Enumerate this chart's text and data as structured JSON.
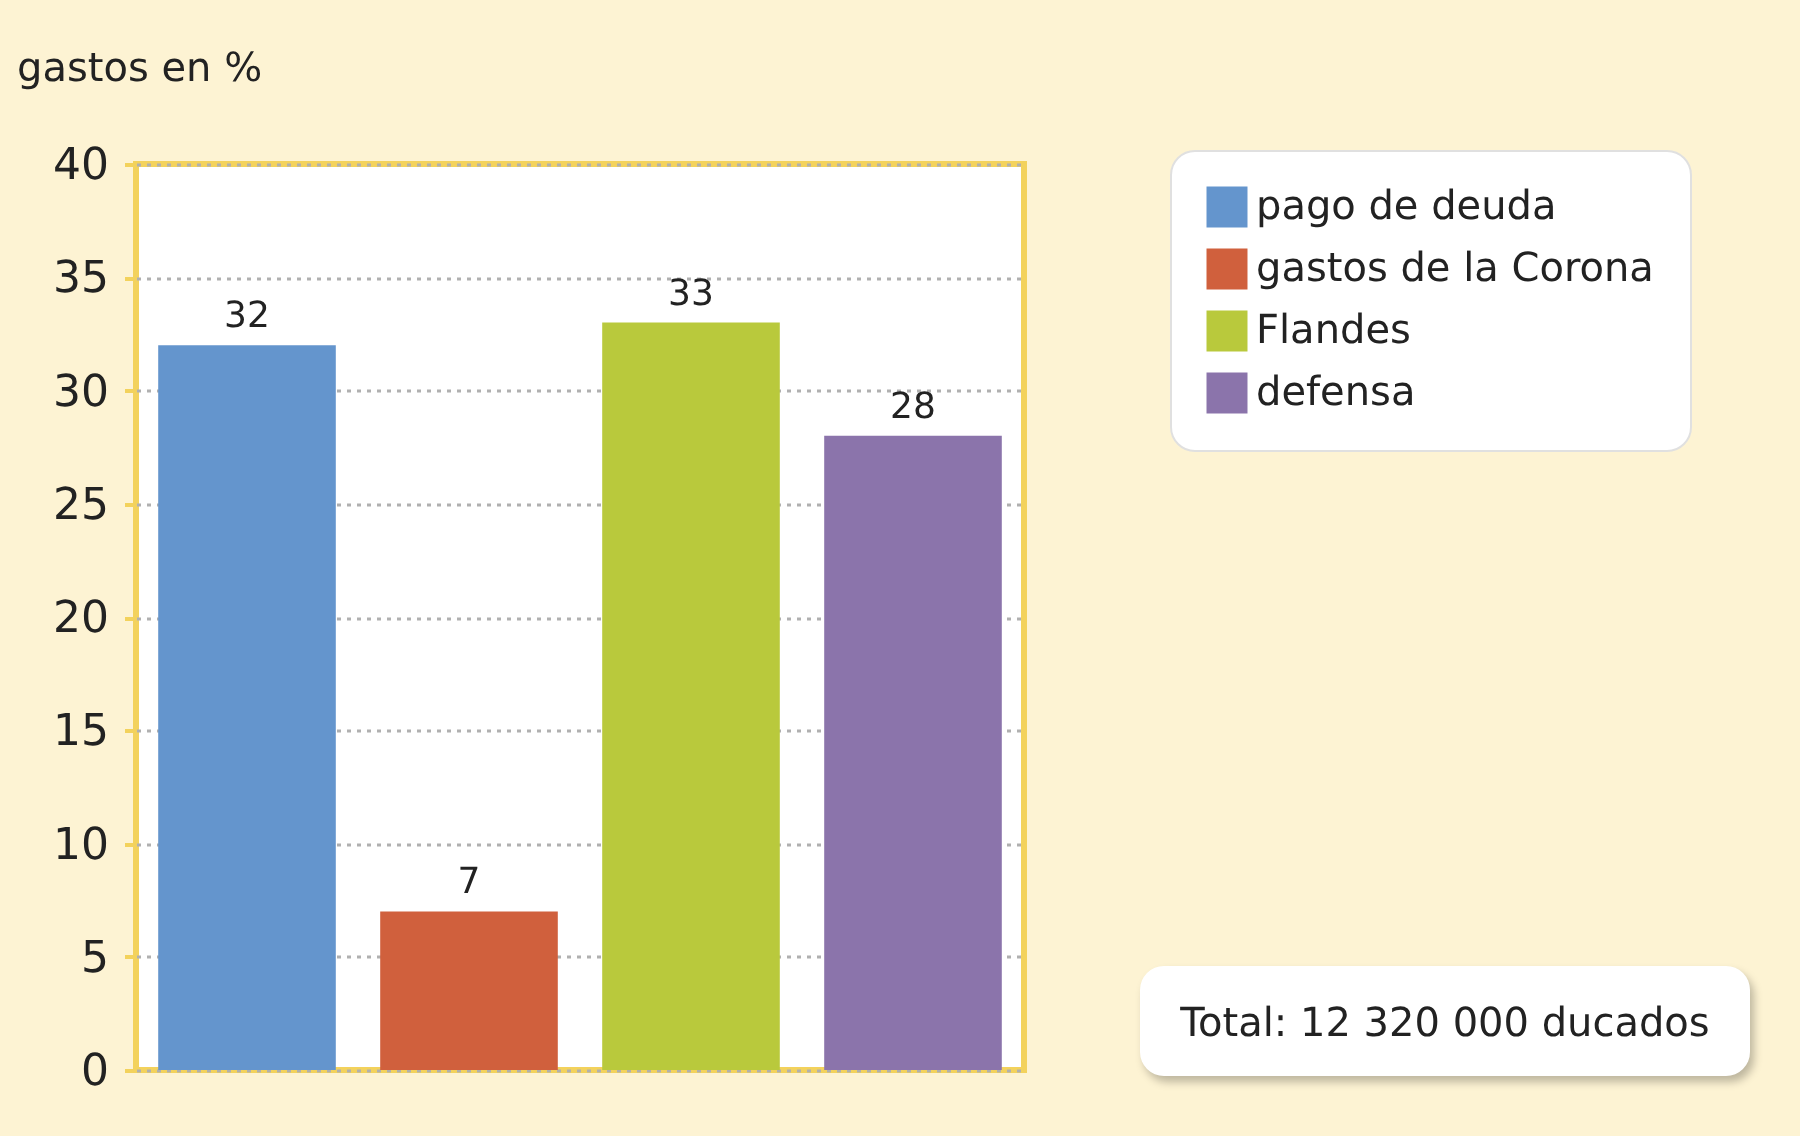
{
  "chart_data": {
    "type": "bar",
    "ylabel": "gastos en %",
    "categories": [
      null,
      null,
      null,
      null
    ],
    "series": [
      {
        "name": "pago de deuda",
        "color": "#6495cd",
        "values": [
          32,
          null,
          null,
          null
        ]
      },
      {
        "name": "gastos de la Corona",
        "color": "#d0603d",
        "values": [
          null,
          7,
          null,
          null
        ]
      },
      {
        "name": "Flandes",
        "color": "#b9c93c",
        "values": [
          null,
          null,
          33,
          null
        ]
      },
      {
        "name": "defensa",
        "color": "#8b74ab",
        "values": [
          null,
          null,
          null,
          28
        ]
      }
    ],
    "ylim": [
      0,
      40
    ],
    "yticks": [
      0,
      5,
      10,
      15,
      20,
      25,
      30,
      35,
      40
    ],
    "grid": "y",
    "legend": "top right",
    "data_labels": true,
    "annotations": [
      "Total: 12 320 000 ducados"
    ]
  }
}
